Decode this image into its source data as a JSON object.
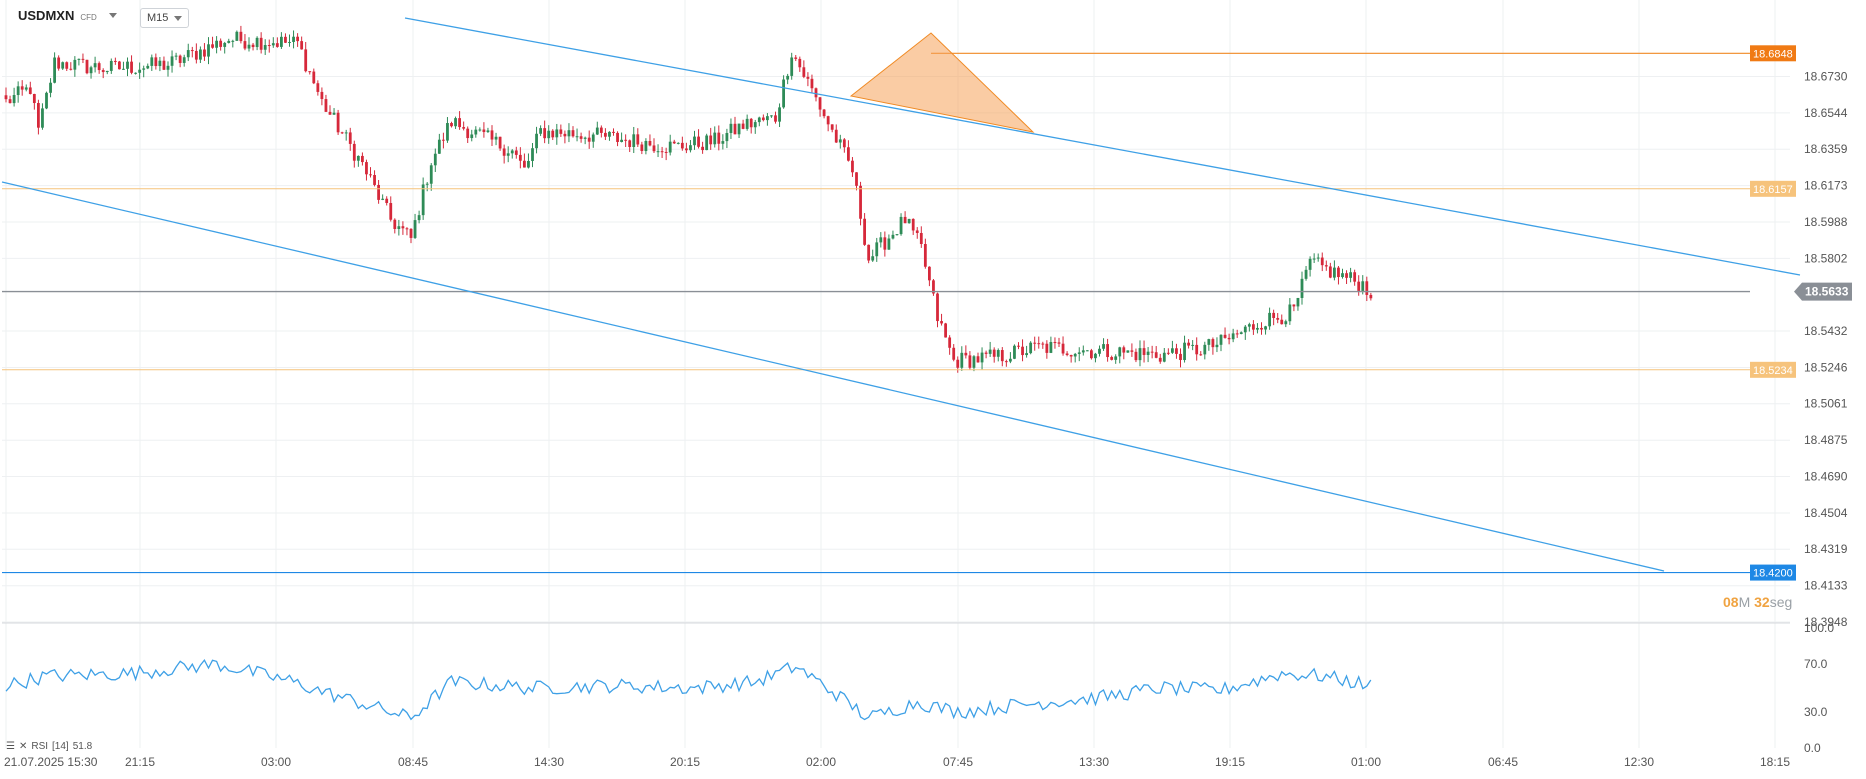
{
  "header": {
    "symbol": "USDMXN",
    "instrument_type": "CFD",
    "timeframe": "M15"
  },
  "timer": {
    "minutes": "08",
    "minutes_unit": "M",
    "seconds": "32",
    "seconds_unit": "seg"
  },
  "rsi": {
    "label": "RSI",
    "period": "[14]",
    "value": "51.8"
  },
  "colors": {
    "up": "#2e8b57",
    "down": "#d6283a",
    "trend": "#3ea0e6",
    "resistance": "#f08a24",
    "level": "#f6c37c",
    "current": "#8a8f96",
    "support": "#1e88e5"
  },
  "chart_data": {
    "type": "candlestick",
    "title": "",
    "xlabel": "",
    "ylabel": "",
    "ylim": [
      18.3948,
      18.7028
    ],
    "y_ticks": [
      "18.6730",
      "18.6544",
      "18.6359",
      "18.6173",
      "18.5988",
      "18.5802",
      "18.5432",
      "18.5246",
      "18.5061",
      "18.4875",
      "18.4690",
      "18.4504",
      "18.4319",
      "18.4133",
      "18.3948"
    ],
    "x_ticks": [
      "21.07.2025  15:30",
      "21:15",
      "03:00",
      "08:45",
      "14:30",
      "20:15",
      "02:00",
      "07:45",
      "13:30",
      "19:15",
      "01:00",
      "06:45",
      "12:30",
      "18:15"
    ],
    "price_levels": [
      {
        "value": "18.6848",
        "role": "resistance"
      },
      {
        "value": "18.6157",
        "role": "level"
      },
      {
        "value": "18.5633",
        "role": "current"
      },
      {
        "value": "18.5234",
        "role": "level"
      },
      {
        "value": "18.4200",
        "role": "support"
      }
    ],
    "trendlines": [
      {
        "from": [
          "21:15-",
          18.7001
        ],
        "to": [
          "12:15",
          18.5654
        ]
      },
      {
        "from": [
          "start",
          18.6102
        ],
        "to": [
          "12:00",
          18.4206
        ]
      }
    ],
    "rsi_panel": {
      "ylim": [
        0,
        100
      ],
      "y_ticks": [
        "100.0",
        "70.0",
        "30.0",
        "0.0"
      ]
    },
    "anchors": [
      {
        "i": 0,
        "p": 18.66
      },
      {
        "i": 6,
        "p": 18.667
      },
      {
        "i": 8,
        "p": 18.645
      },
      {
        "i": 12,
        "p": 18.68
      },
      {
        "i": 25,
        "p": 18.677
      },
      {
        "i": 40,
        "p": 18.679
      },
      {
        "i": 55,
        "p": 18.692
      },
      {
        "i": 72,
        "p": 18.69
      },
      {
        "i": 78,
        "p": 18.66
      },
      {
        "i": 88,
        "p": 18.628
      },
      {
        "i": 95,
        "p": 18.6
      },
      {
        "i": 100,
        "p": 18.59
      },
      {
        "i": 105,
        "p": 18.63
      },
      {
        "i": 110,
        "p": 18.65
      },
      {
        "i": 125,
        "p": 18.635
      },
      {
        "i": 128,
        "p": 18.625
      },
      {
        "i": 132,
        "p": 18.645
      },
      {
        "i": 145,
        "p": 18.643
      },
      {
        "i": 165,
        "p": 18.637
      },
      {
        "i": 175,
        "p": 18.64
      },
      {
        "i": 182,
        "p": 18.648
      },
      {
        "i": 190,
        "p": 18.652
      },
      {
        "i": 194,
        "p": 18.686
      },
      {
        "i": 198,
        "p": 18.67
      },
      {
        "i": 204,
        "p": 18.645
      },
      {
        "i": 209,
        "p": 18.625
      },
      {
        "i": 213,
        "p": 18.58
      },
      {
        "i": 222,
        "p": 18.6
      },
      {
        "i": 226,
        "p": 18.585
      },
      {
        "i": 230,
        "p": 18.55
      },
      {
        "i": 234,
        "p": 18.528
      },
      {
        "i": 245,
        "p": 18.53
      },
      {
        "i": 255,
        "p": 18.535
      },
      {
        "i": 270,
        "p": 18.533
      },
      {
        "i": 285,
        "p": 18.531
      },
      {
        "i": 295,
        "p": 18.534
      },
      {
        "i": 300,
        "p": 18.537
      },
      {
        "i": 310,
        "p": 18.548
      },
      {
        "i": 318,
        "p": 18.553
      },
      {
        "i": 322,
        "p": 18.578
      },
      {
        "i": 329,
        "p": 18.572
      },
      {
        "i": 335,
        "p": 18.567
      },
      {
        "i": 337,
        "p": 18.563
      }
    ],
    "candle_count": 338,
    "rsi_anchors": [
      {
        "i": 0,
        "v": 52
      },
      {
        "i": 10,
        "v": 60
      },
      {
        "i": 30,
        "v": 62
      },
      {
        "i": 52,
        "v": 70
      },
      {
        "i": 70,
        "v": 56
      },
      {
        "i": 80,
        "v": 45
      },
      {
        "i": 95,
        "v": 30
      },
      {
        "i": 100,
        "v": 25
      },
      {
        "i": 110,
        "v": 55
      },
      {
        "i": 130,
        "v": 50
      },
      {
        "i": 150,
        "v": 52
      },
      {
        "i": 170,
        "v": 50
      },
      {
        "i": 185,
        "v": 55
      },
      {
        "i": 195,
        "v": 68
      },
      {
        "i": 205,
        "v": 45
      },
      {
        "i": 213,
        "v": 25
      },
      {
        "i": 225,
        "v": 38
      },
      {
        "i": 235,
        "v": 30
      },
      {
        "i": 250,
        "v": 36
      },
      {
        "i": 270,
        "v": 42
      },
      {
        "i": 285,
        "v": 50
      },
      {
        "i": 300,
        "v": 48
      },
      {
        "i": 315,
        "v": 62
      },
      {
        "i": 325,
        "v": 60
      },
      {
        "i": 337,
        "v": 52
      }
    ]
  }
}
